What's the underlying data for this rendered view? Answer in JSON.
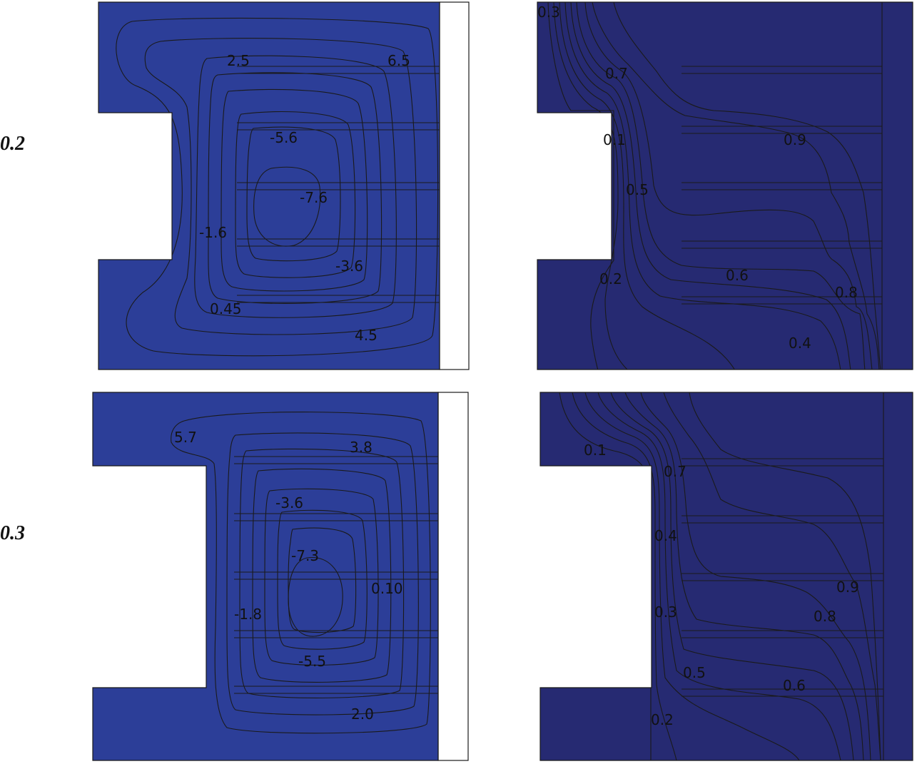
{
  "row_labels": [
    "0.2",
    "0.3"
  ],
  "palette": {
    "deep_navy": "#262a72",
    "navy": "#2c3e98",
    "blue": "#3b5fb0",
    "mid_blue": "#3aa2e0",
    "sky": "#3fc0ee",
    "teal": "#6fcccb",
    "green": "#8cc77a",
    "lime": "#c9d94a",
    "yellow": "#e6e21b",
    "amber": "#f9b01b",
    "orange": "#f47a22",
    "red_orange": "#ef5126",
    "red": "#e41e26",
    "crimson": "#c81e26",
    "maroon": "#7d1518"
  },
  "panels": {
    "top_left": {
      "labels": [
        "2.5",
        "6.5",
        "-5.6",
        "-7.6",
        "-1.6",
        "-3.6",
        "0.45",
        "4.5"
      ]
    },
    "top_right": {
      "labels": [
        "0.3",
        "0.7",
        "0.1",
        "0.9",
        "0.5",
        "0.2",
        "0.6",
        "0.8",
        "0.4"
      ]
    },
    "bottom_left": {
      "labels": [
        "5.7",
        "3.8",
        "-3.6",
        "-7.3",
        "0.10",
        "-1.8",
        "-5.5",
        "2.0"
      ]
    },
    "bottom_right": {
      "labels": [
        "0.1",
        "0.7",
        "0.4",
        "0.9",
        "0.3",
        "0.8",
        "0.5",
        "0.6",
        "0.2"
      ]
    }
  }
}
